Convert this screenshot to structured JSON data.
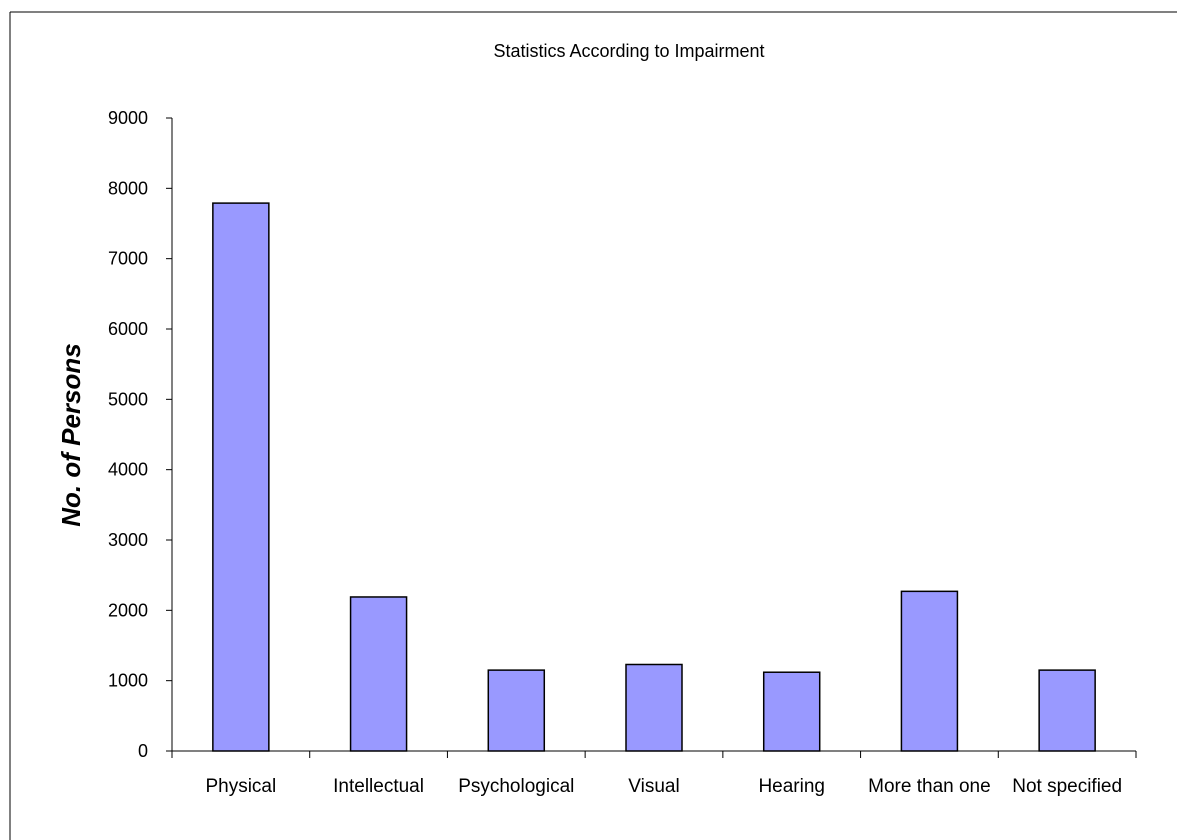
{
  "chart_data": {
    "type": "bar",
    "title": "Statistics According to Impairment",
    "xlabel": "",
    "ylabel": "No. of Persons",
    "categories": [
      "Physical",
      "Intellectual",
      "Psychological",
      "Visual",
      "Hearing",
      "More than one",
      "Not specified"
    ],
    "values": [
      7790,
      2190,
      1150,
      1230,
      1120,
      2270,
      1150
    ],
    "ylim": [
      0,
      9000
    ],
    "yticks": [
      "0",
      "1000",
      "2000",
      "3000",
      "4000",
      "5000",
      "6000",
      "7000",
      "8000",
      "9000"
    ],
    "grid": false,
    "legend": "none",
    "bar_color": "#9999ff",
    "bar_stroke": "#000000"
  }
}
